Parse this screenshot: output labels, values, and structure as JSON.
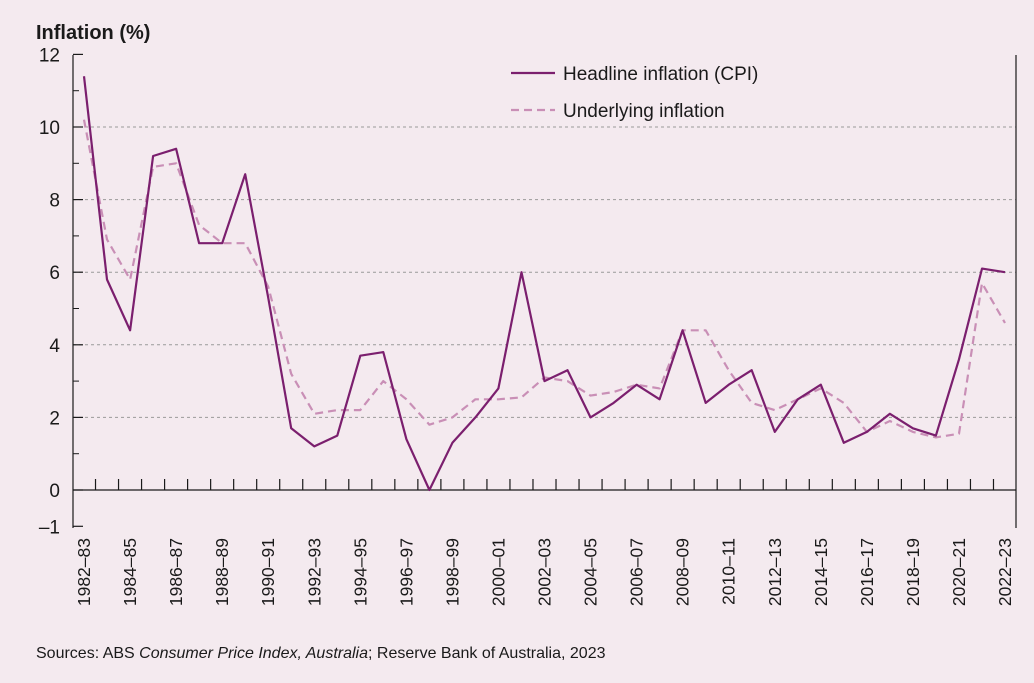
{
  "chart_data": {
    "type": "line",
    "ylabel": "Inflation (%)",
    "ylim": [
      -1,
      12
    ],
    "yticks": [
      -1,
      0,
      2,
      4,
      6,
      8,
      10,
      12
    ],
    "ytick_labels": [
      "–1",
      "0",
      "2",
      "4",
      "6",
      "8",
      "10",
      "12"
    ],
    "grid": "horizontal dashed",
    "legend_position": "top-right",
    "categories": [
      "1982–83",
      "1983–84",
      "1984–85",
      "1985–86",
      "1986–87",
      "1987–88",
      "1988–89",
      "1989–90",
      "1990–91",
      "1991–92",
      "1992–93",
      "1993–94",
      "1994–95",
      "1995–96",
      "1996–97",
      "1997–98",
      "1998–99",
      "1999–00",
      "2000–01",
      "2001–02",
      "2002–03",
      "2003–04",
      "2004–05",
      "2005–06",
      "2006–07",
      "2007–08",
      "2008–09",
      "2009–10",
      "2010–11",
      "2011–12",
      "2012–13",
      "2013–14",
      "2014–15",
      "2015–16",
      "2016–17",
      "2017–18",
      "2018–19",
      "2019–20",
      "2020–21",
      "2021–22",
      "2022–23"
    ],
    "shown_tick_labels": [
      "1982–83",
      "1984–85",
      "1986–87",
      "1988–89",
      "1990–91",
      "1992–93",
      "1994–95",
      "1996–97",
      "1998–99",
      "2000–01",
      "2002–03",
      "2004–05",
      "2006–07",
      "2008–09",
      "2010–11",
      "2012–13",
      "2014–15",
      "2016–17",
      "2018–19",
      "2020–21",
      "2022–23"
    ],
    "series": [
      {
        "name": "Headline inflation (CPI)",
        "color": "#7b1f6e",
        "style": "solid",
        "values": [
          11.4,
          5.8,
          4.4,
          9.2,
          9.4,
          6.8,
          6.8,
          8.7,
          5.3,
          1.7,
          1.2,
          1.5,
          3.7,
          3.8,
          1.4,
          0.0,
          1.3,
          2.0,
          2.8,
          6.0,
          3.0,
          3.3,
          2.0,
          2.4,
          2.9,
          2.5,
          4.4,
          2.4,
          2.9,
          3.3,
          1.6,
          2.5,
          2.9,
          1.3,
          1.6,
          2.1,
          1.7,
          1.5,
          3.6,
          6.1,
          6.0
        ]
      },
      {
        "name": "Underlying inflation",
        "color": "#c98fb6",
        "style": "dashed",
        "values": [
          10.2,
          6.9,
          5.8,
          8.9,
          9.0,
          7.3,
          6.8,
          6.8,
          5.6,
          3.2,
          2.1,
          2.2,
          2.2,
          3.0,
          2.5,
          1.8,
          2.0,
          2.5,
          2.5,
          2.55,
          3.1,
          3.0,
          2.6,
          2.7,
          2.9,
          2.8,
          4.4,
          4.4,
          3.3,
          2.4,
          2.2,
          2.5,
          2.8,
          2.4,
          1.6,
          1.9,
          1.6,
          1.45,
          1.55,
          5.7,
          4.6
        ]
      }
    ]
  },
  "footer": {
    "prefix": "Sources: ABS ",
    "italic": "Consumer Price Index, Australia",
    "suffix": "; Reserve Bank of Australia, 2023"
  }
}
